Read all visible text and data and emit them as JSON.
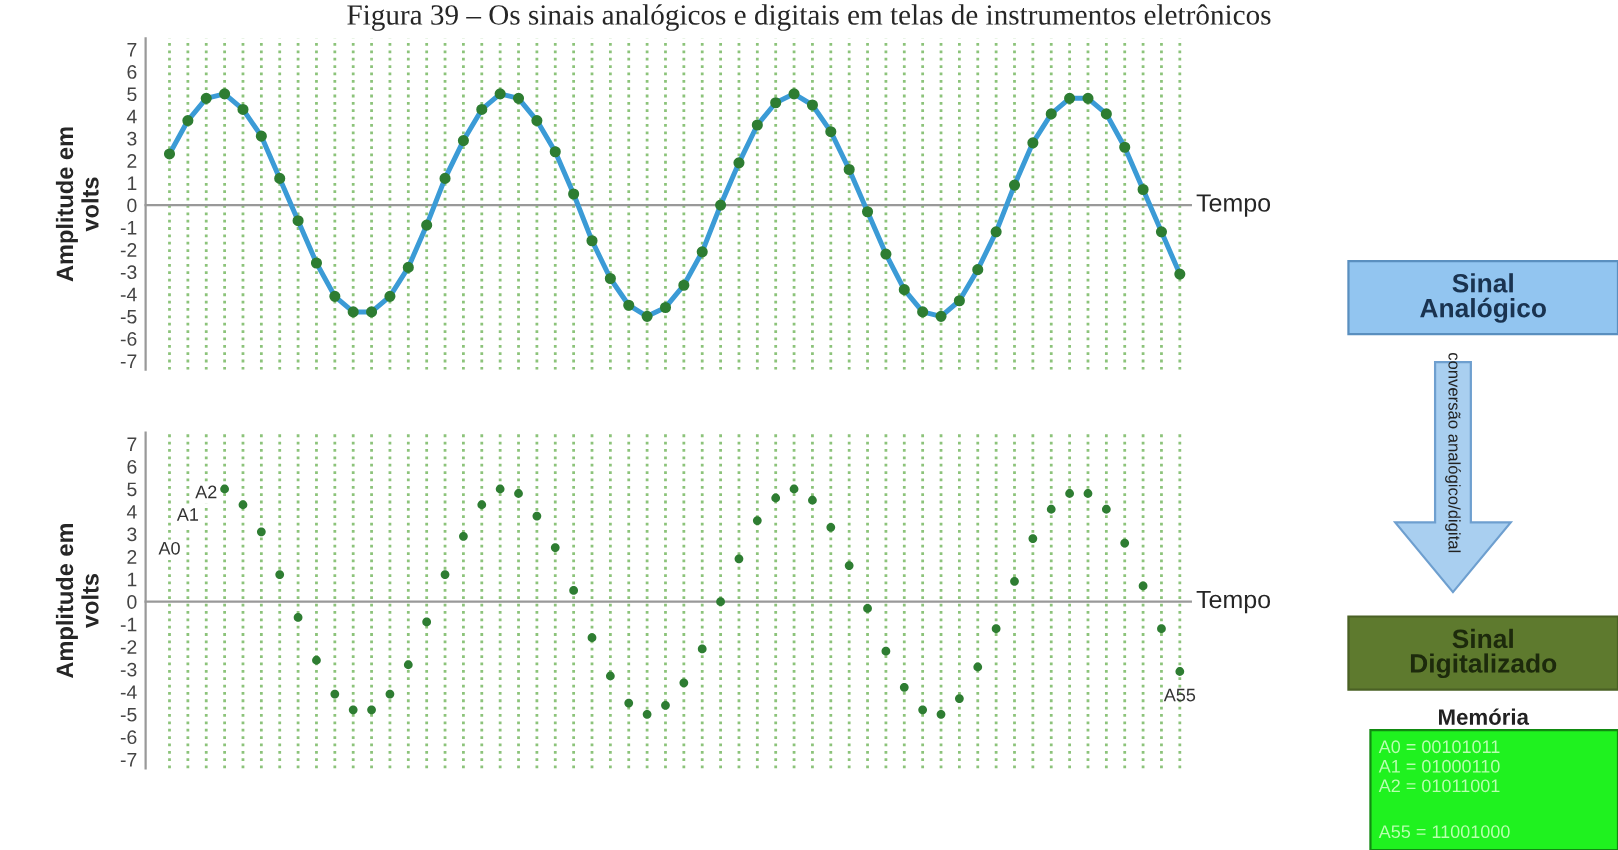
{
  "chart_data": [
    {
      "type": "line",
      "title": "Figura 39 – Os sinais analógicos e digitais em telas de instrumentos eletrônicos",
      "ylabel": "Amplitude em\nvolts",
      "xlabel": "Tempo",
      "categories": [
        null,
        null,
        null,
        null,
        null,
        null,
        null,
        null,
        null,
        null,
        null,
        null,
        null,
        null,
        null,
        null,
        null,
        null,
        null,
        null,
        null,
        null,
        null,
        null,
        null,
        null,
        null,
        null,
        null,
        null,
        null,
        null,
        null,
        null,
        null,
        null,
        null,
        null,
        null,
        null,
        null,
        null,
        null,
        null,
        null,
        null,
        null,
        null,
        null,
        null,
        null,
        null,
        null,
        null,
        null,
        null
      ],
      "series": [
        {
          "color": "#3b9bd6",
          "values": [
            2.3,
            3.8,
            4.8,
            5.0,
            4.3,
            3.1,
            1.2,
            -0.7,
            -2.6,
            -4.1,
            -4.8,
            -4.8,
            -4.1,
            -2.8,
            -0.9,
            1.2,
            2.9,
            4.3,
            5.0,
            4.8,
            3.8,
            2.4,
            0.5,
            -1.6,
            -3.3,
            -4.5,
            -5.0,
            -4.6,
            -3.6,
            -2.1,
            0.0,
            1.9,
            3.6,
            4.6,
            5.0,
            4.5,
            3.3,
            1.6,
            -0.3,
            -2.2,
            -3.8,
            -4.8,
            -5.0,
            -4.3,
            -2.9,
            -1.2,
            0.9,
            2.8,
            4.1,
            4.8,
            4.8,
            4.1,
            2.6,
            0.7,
            -1.2,
            -3.1
          ]
        }
      ],
      "ylim": [
        -7.4,
        7.5
      ],
      "yticks": [
        7,
        6,
        5,
        4,
        3,
        2,
        1,
        0,
        -1,
        -2,
        -3,
        -4,
        -5,
        -6,
        -7
      ],
      "grid": "x",
      "marker": "circle",
      "tick_labels": "y"
    },
    {
      "type": "lollipop",
      "ylabel": "Amplitude em\nvolts",
      "xlabel": "Tempo",
      "categories": [
        null,
        null,
        null,
        null,
        null,
        null,
        null,
        null,
        null,
        null,
        null,
        null,
        null,
        null,
        null,
        null,
        null,
        null,
        null,
        null,
        null,
        null,
        null,
        null,
        null,
        null,
        null,
        null,
        null,
        null,
        null,
        null,
        null,
        null,
        null,
        null,
        null,
        null,
        null,
        null,
        null,
        null,
        null,
        null,
        null,
        null,
        null,
        null,
        null,
        null,
        null,
        null,
        null,
        null,
        null,
        null
      ],
      "series": [
        {
          "color": "#2e7d32",
          "values": [
            2.3,
            3.8,
            4.8,
            5.0,
            4.3,
            3.1,
            1.2,
            -0.7,
            -2.6,
            -4.1,
            -4.8,
            -4.8,
            -4.1,
            -2.8,
            -0.9,
            1.2,
            2.9,
            4.3,
            5.0,
            4.8,
            3.8,
            2.4,
            0.5,
            -1.6,
            -3.3,
            -4.5,
            -5.0,
            -4.6,
            -3.6,
            -2.1,
            0.0,
            1.9,
            3.6,
            4.6,
            5.0,
            4.5,
            3.3,
            1.6,
            -0.3,
            -2.2,
            -3.8,
            -4.8,
            -5.0,
            -4.3,
            -2.9,
            -1.2,
            0.9,
            2.8,
            4.1,
            4.8,
            4.8,
            4.1,
            2.6,
            0.7,
            -1.2,
            -3.1
          ]
        }
      ],
      "ylim": [
        -7.4,
        7.5
      ],
      "yticks": [
        7,
        6,
        5,
        4,
        3,
        2,
        1,
        0,
        -1,
        -2,
        -3,
        -4,
        -5,
        -6,
        -7
      ],
      "grid": "x",
      "marker": "circle",
      "tick_labels": "y",
      "annotations": [
        "A0",
        "A1",
        "A2",
        "A55"
      ]
    },
    {
      "type": "other",
      "annotations": [
        "Sinal\nAnalógico",
        "conversão analógico/digital",
        "Sinal\nDigitalizado",
        "Memória",
        "A0 = 00101011",
        "A1 = 01000110",
        "A2 = 01011001",
        "A55 = 11001000"
      ]
    }
  ]
}
